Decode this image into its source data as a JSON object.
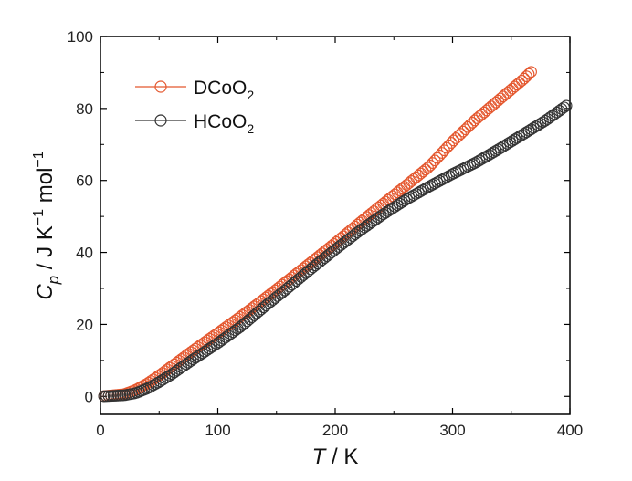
{
  "chart_data": {
    "type": "scatter",
    "title": "",
    "xlabel_var": "T",
    "xlabel_unit": " / K",
    "ylabel_var": "C",
    "ylabel_sub": "p",
    "ylabel_unit_a": " / J K",
    "ylabel_unit_b": " mol",
    "ylabel_sup": "−1",
    "xlim": [
      0,
      400
    ],
    "ylim": [
      -5,
      100
    ],
    "xticks": [
      0,
      100,
      200,
      300,
      400
    ],
    "yticks": [
      0,
      20,
      40,
      60,
      80,
      100
    ],
    "legend_position": "top-left",
    "series": [
      {
        "name": "DCoO",
        "name_sub": "2",
        "color": "#e4572e",
        "x_range": [
          3,
          368
        ],
        "points": [
          [
            0,
            0
          ],
          [
            20,
            0.6
          ],
          [
            30,
            1.8
          ],
          [
            40,
            3.6
          ],
          [
            50,
            5.8
          ],
          [
            60,
            8.2
          ],
          [
            80,
            13
          ],
          [
            100,
            17.6
          ],
          [
            120,
            22.3
          ],
          [
            140,
            27.2
          ],
          [
            160,
            32.3
          ],
          [
            180,
            37.4
          ],
          [
            200,
            42.6
          ],
          [
            220,
            48
          ],
          [
            240,
            53.3
          ],
          [
            260,
            58.5
          ],
          [
            280,
            63.8
          ],
          [
            300,
            70.8
          ],
          [
            320,
            77
          ],
          [
            340,
            82.5
          ],
          [
            360,
            88
          ],
          [
            368,
            90.5
          ]
        ]
      },
      {
        "name": "HCoO",
        "name_sub": "2",
        "color": "#333333",
        "x_range": [
          3,
          398
        ],
        "points": [
          [
            0,
            0
          ],
          [
            20,
            0.3
          ],
          [
            30,
            0.9
          ],
          [
            40,
            2.2
          ],
          [
            50,
            4
          ],
          [
            60,
            6
          ],
          [
            80,
            10.5
          ],
          [
            100,
            14.8
          ],
          [
            120,
            19.5
          ],
          [
            140,
            25
          ],
          [
            160,
            30.2
          ],
          [
            180,
            35.6
          ],
          [
            200,
            40.8
          ],
          [
            220,
            45.8
          ],
          [
            240,
            50.4
          ],
          [
            260,
            54.6
          ],
          [
            280,
            58.3
          ],
          [
            300,
            61.8
          ],
          [
            320,
            65
          ],
          [
            340,
            68.8
          ],
          [
            360,
            72.8
          ],
          [
            380,
            76.8
          ],
          [
            398,
            81
          ]
        ]
      }
    ]
  }
}
